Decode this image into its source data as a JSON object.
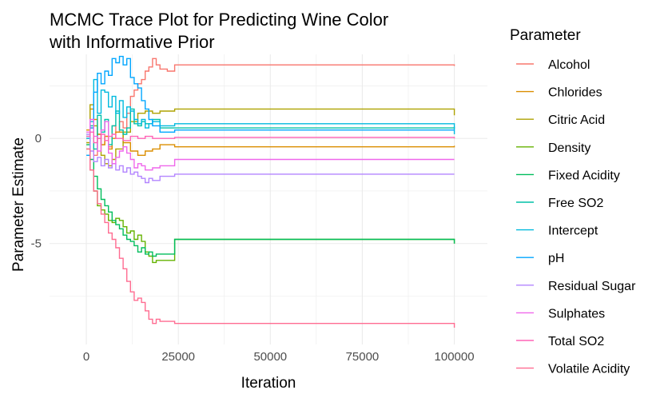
{
  "chart_data": {
    "type": "line",
    "title_line1": "MCMC Trace Plot for Predicting Wine Color",
    "title_line2": "with Informative Prior",
    "xlabel": "Iteration",
    "ylabel": "Parameter Estimate",
    "xlim": [
      -10000,
      109000
    ],
    "ylim": [
      -9.8,
      4.0
    ],
    "x_ticks": [
      0,
      25000,
      50000,
      75000,
      100000
    ],
    "x_tick_labels": [
      "0",
      "25000",
      "50000",
      "75000",
      "100000"
    ],
    "y_ticks": [
      0,
      -5
    ],
    "y_tick_labels": [
      "0",
      "-5"
    ],
    "grid": true,
    "legend": {
      "title": "Parameter",
      "placement": "right"
    },
    "series": [
      {
        "name": "Alcohol",
        "color": "#F8766D",
        "points": [
          [
            0,
            0.0
          ],
          [
            1000,
            0.5
          ],
          [
            2000,
            -0.8
          ],
          [
            3000,
            0.2
          ],
          [
            4000,
            -0.3
          ],
          [
            5000,
            0.1
          ],
          [
            6000,
            -0.4
          ],
          [
            7000,
            0.6
          ],
          [
            8000,
            0.3
          ],
          [
            9000,
            0.8
          ],
          [
            10000,
            0.5
          ],
          [
            11000,
            1.2
          ],
          [
            12000,
            2.0
          ],
          [
            13000,
            2.3
          ],
          [
            14000,
            2.6
          ],
          [
            15000,
            2.8
          ],
          [
            16000,
            3.2
          ],
          [
            17000,
            3.4
          ],
          [
            18000,
            3.8
          ],
          [
            19000,
            3.5
          ],
          [
            20000,
            3.3
          ],
          [
            22000,
            3.2
          ],
          [
            24000,
            3.5
          ],
          [
            93000,
            3.5
          ],
          [
            100000,
            3.45
          ]
        ]
      },
      {
        "name": "Chlorides",
        "color": "#DB8E00",
        "points": [
          [
            0,
            0.4
          ],
          [
            1000,
            1.4
          ],
          [
            2000,
            0.9
          ],
          [
            3000,
            0.2
          ],
          [
            4000,
            -0.3
          ],
          [
            5000,
            0.1
          ],
          [
            6000,
            -0.5
          ],
          [
            7000,
            0.0
          ],
          [
            8000,
            0.3
          ],
          [
            10000,
            -0.2
          ],
          [
            12000,
            -0.6
          ],
          [
            14000,
            -0.8
          ],
          [
            16000,
            -0.6
          ],
          [
            18000,
            -0.5
          ],
          [
            20000,
            -0.3
          ],
          [
            24000,
            -0.4
          ],
          [
            93000,
            -0.4
          ],
          [
            100000,
            -0.35
          ]
        ]
      },
      {
        "name": "Citric Acid",
        "color": "#AEA200",
        "points": [
          [
            0,
            -0.2
          ],
          [
            1000,
            1.6
          ],
          [
            2000,
            0.6
          ],
          [
            3000,
            0.0
          ],
          [
            4000,
            -0.8
          ],
          [
            5000,
            -1.2
          ],
          [
            6000,
            -1.3
          ],
          [
            7000,
            -1.0
          ],
          [
            8000,
            -0.5
          ],
          [
            10000,
            0.3
          ],
          [
            12000,
            0.8
          ],
          [
            14000,
            1.2
          ],
          [
            16000,
            1.3
          ],
          [
            18000,
            1.2
          ],
          [
            20000,
            1.3
          ],
          [
            24000,
            1.4
          ],
          [
            93000,
            1.4
          ],
          [
            100000,
            1.1
          ]
        ]
      },
      {
        "name": "Density",
        "color": "#64B200",
        "points": [
          [
            0,
            -0.5
          ],
          [
            1000,
            -1.5
          ],
          [
            2000,
            -2.5
          ],
          [
            3000,
            -3.2
          ],
          [
            4000,
            -3.4
          ],
          [
            5000,
            -3.6
          ],
          [
            6000,
            -3.9
          ],
          [
            7000,
            -4.0
          ],
          [
            8000,
            -3.8
          ],
          [
            9000,
            -3.9
          ],
          [
            10000,
            -4.2
          ],
          [
            11000,
            -4.5
          ],
          [
            12000,
            -4.4
          ],
          [
            13000,
            -4.8
          ],
          [
            14000,
            -4.6
          ],
          [
            15000,
            -4.9
          ],
          [
            16000,
            -5.4
          ],
          [
            17000,
            -5.6
          ],
          [
            18000,
            -5.9
          ],
          [
            19000,
            -5.8
          ],
          [
            20000,
            -5.8
          ],
          [
            24000,
            -4.8
          ],
          [
            93000,
            -4.8
          ],
          [
            100000,
            -5.0
          ]
        ]
      },
      {
        "name": "Fixed Acidity",
        "color": "#00BD5C",
        "points": [
          [
            0,
            -0.3
          ],
          [
            1000,
            -1.0
          ],
          [
            2000,
            -1.8
          ],
          [
            3000,
            -2.4
          ],
          [
            4000,
            -2.9
          ],
          [
            5000,
            -3.2
          ],
          [
            6000,
            -3.5
          ],
          [
            7000,
            -3.9
          ],
          [
            8000,
            -4.1
          ],
          [
            9000,
            -4.3
          ],
          [
            10000,
            -4.6
          ],
          [
            11000,
            -4.8
          ],
          [
            12000,
            -4.9
          ],
          [
            13000,
            -5.1
          ],
          [
            14000,
            -5.4
          ],
          [
            15000,
            -5.2
          ],
          [
            16000,
            -5.5
          ],
          [
            17000,
            -5.4
          ],
          [
            18000,
            -5.6
          ],
          [
            19000,
            -5.5
          ],
          [
            20000,
            -5.5
          ],
          [
            24000,
            -4.8
          ],
          [
            93000,
            -4.8
          ],
          [
            100000,
            -5.0
          ]
        ]
      },
      {
        "name": "Free SO2",
        "color": "#00C1A7",
        "points": [
          [
            0,
            0.1
          ],
          [
            1000,
            0.6
          ],
          [
            2000,
            -0.5
          ],
          [
            3000,
            1.1
          ],
          [
            4000,
            0.3
          ],
          [
            5000,
            0.9
          ],
          [
            6000,
            -0.3
          ],
          [
            7000,
            0.6
          ],
          [
            8000,
            1.3
          ],
          [
            9000,
            0.4
          ],
          [
            10000,
            0.2
          ],
          [
            11000,
            0.5
          ],
          [
            12000,
            1.4
          ],
          [
            13000,
            0.7
          ],
          [
            14000,
            0.6
          ],
          [
            15000,
            0.8
          ],
          [
            16000,
            0.7
          ],
          [
            18000,
            0.9
          ],
          [
            20000,
            0.5
          ],
          [
            24000,
            0.5
          ],
          [
            93000,
            0.5
          ],
          [
            100000,
            0.55
          ]
        ]
      },
      {
        "name": "Intercept",
        "color": "#00BADE",
        "points": [
          [
            0,
            0.0
          ],
          [
            1000,
            0.8
          ],
          [
            2000,
            2.8
          ],
          [
            3000,
            1.2
          ],
          [
            4000,
            2.3
          ],
          [
            5000,
            2.2
          ],
          [
            6000,
            1.5
          ],
          [
            7000,
            2.0
          ],
          [
            8000,
            1.2
          ],
          [
            9000,
            1.8
          ],
          [
            10000,
            1.0
          ],
          [
            11000,
            1.5
          ],
          [
            12000,
            1.3
          ],
          [
            13000,
            0.9
          ],
          [
            14000,
            0.7
          ],
          [
            15000,
            0.9
          ],
          [
            16000,
            0.5
          ],
          [
            17000,
            0.7
          ],
          [
            18000,
            0.8
          ],
          [
            20000,
            0.6
          ],
          [
            24000,
            0.7
          ],
          [
            93000,
            0.7
          ],
          [
            100000,
            0.2
          ]
        ]
      },
      {
        "name": "pH",
        "color": "#00A6FF",
        "points": [
          [
            0,
            -0.8
          ],
          [
            1000,
            0.5
          ],
          [
            2000,
            2.2
          ],
          [
            3000,
            3.1
          ],
          [
            4000,
            2.6
          ],
          [
            5000,
            3.2
          ],
          [
            6000,
            3.0
          ],
          [
            7000,
            3.8
          ],
          [
            8000,
            3.6
          ],
          [
            9000,
            3.9
          ],
          [
            10000,
            3.5
          ],
          [
            11000,
            3.8
          ],
          [
            12000,
            2.9
          ],
          [
            13000,
            2.6
          ],
          [
            14000,
            2.4
          ],
          [
            15000,
            1.8
          ],
          [
            16000,
            1.4
          ],
          [
            17000,
            0.9
          ],
          [
            18000,
            0.6
          ],
          [
            20000,
            0.3
          ],
          [
            24000,
            0.4
          ],
          [
            93000,
            0.4
          ],
          [
            100000,
            0.4
          ]
        ]
      },
      {
        "name": "Residual Sugar",
        "color": "#B385FF",
        "points": [
          [
            0,
            0.2
          ],
          [
            1000,
            -0.6
          ],
          [
            2000,
            -1.1
          ],
          [
            3000,
            -0.9
          ],
          [
            4000,
            -1.3
          ],
          [
            5000,
            -1.0
          ],
          [
            6000,
            -1.4
          ],
          [
            7000,
            -1.2
          ],
          [
            8000,
            -1.5
          ],
          [
            9000,
            -1.3
          ],
          [
            10000,
            -1.6
          ],
          [
            11000,
            -1.4
          ],
          [
            12000,
            -1.7
          ],
          [
            13000,
            -1.6
          ],
          [
            14000,
            -1.8
          ],
          [
            15000,
            -1.9
          ],
          [
            16000,
            -2.1
          ],
          [
            17000,
            -1.9
          ],
          [
            18000,
            -2.0
          ],
          [
            20000,
            -1.8
          ],
          [
            24000,
            -1.7
          ],
          [
            93000,
            -1.7
          ],
          [
            100000,
            -1.7
          ]
        ]
      },
      {
        "name": "Sulphates",
        "color": "#EF67EB",
        "points": [
          [
            0,
            0.3
          ],
          [
            1000,
            0.9
          ],
          [
            2000,
            0.1
          ],
          [
            3000,
            -0.6
          ],
          [
            4000,
            0.4
          ],
          [
            5000,
            0.8
          ],
          [
            6000,
            -0.7
          ],
          [
            7000,
            -1.2
          ],
          [
            8000,
            -0.9
          ],
          [
            9000,
            -0.6
          ],
          [
            10000,
            -0.4
          ],
          [
            11000,
            -0.7
          ],
          [
            12000,
            -1.0
          ],
          [
            13000,
            -1.4
          ],
          [
            14000,
            -1.2
          ],
          [
            15000,
            -1.3
          ],
          [
            16000,
            -1.5
          ],
          [
            18000,
            -1.4
          ],
          [
            20000,
            -1.3
          ],
          [
            24000,
            -1.0
          ],
          [
            93000,
            -1.0
          ],
          [
            100000,
            -1.0
          ]
        ]
      },
      {
        "name": "Total SO2",
        "color": "#FF63B6",
        "points": [
          [
            0,
            0.1
          ],
          [
            1000,
            0.3
          ],
          [
            2000,
            -0.2
          ],
          [
            3000,
            0.0
          ],
          [
            4000,
            0.2
          ],
          [
            5000,
            -0.1
          ],
          [
            6000,
            0.1
          ],
          [
            7000,
            0.2
          ],
          [
            8000,
            0.0
          ],
          [
            10000,
            -0.1
          ],
          [
            12000,
            0.1
          ],
          [
            14000,
            0.0
          ],
          [
            16000,
            0.1
          ],
          [
            18000,
            0.0
          ],
          [
            20000,
            0.0
          ],
          [
            24000,
            0.05
          ],
          [
            93000,
            0.05
          ],
          [
            100000,
            0.0
          ]
        ]
      },
      {
        "name": "Volatile Acidity",
        "color": "#FF6C91",
        "points": [
          [
            0,
            -0.5
          ],
          [
            1000,
            -1.5
          ],
          [
            2000,
            -2.5
          ],
          [
            3000,
            -3.1
          ],
          [
            4000,
            -3.6
          ],
          [
            5000,
            -4.0
          ],
          [
            6000,
            -4.5
          ],
          [
            7000,
            -4.8
          ],
          [
            8000,
            -5.2
          ],
          [
            9000,
            -5.7
          ],
          [
            10000,
            -6.2
          ],
          [
            11000,
            -6.8
          ],
          [
            12000,
            -7.3
          ],
          [
            13000,
            -7.7
          ],
          [
            14000,
            -7.6
          ],
          [
            15000,
            -7.8
          ],
          [
            16000,
            -8.2
          ],
          [
            17000,
            -8.6
          ],
          [
            18000,
            -8.8
          ],
          [
            19000,
            -8.6
          ],
          [
            20000,
            -8.7
          ],
          [
            24000,
            -8.8
          ],
          [
            93000,
            -8.8
          ],
          [
            100000,
            -9.0
          ]
        ]
      }
    ]
  }
}
